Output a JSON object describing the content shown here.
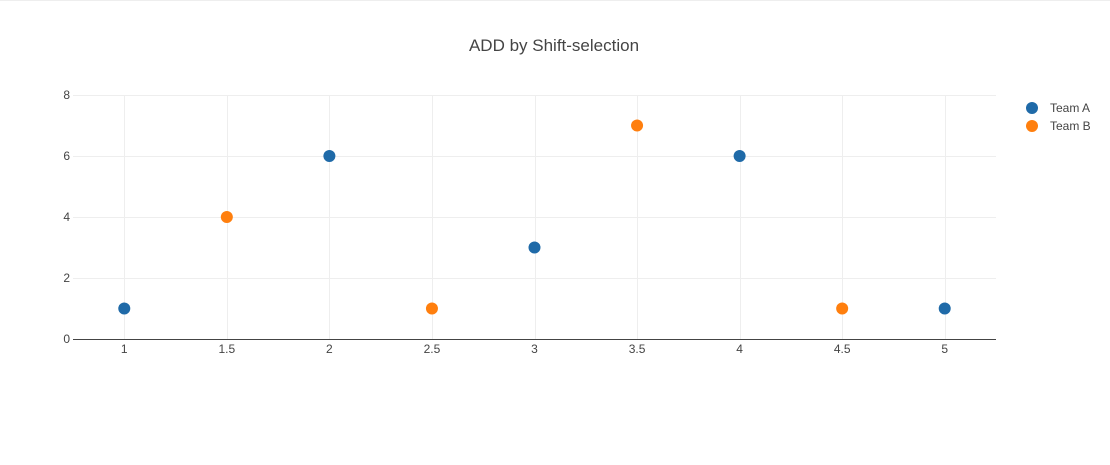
{
  "chart_data": {
    "type": "scatter",
    "title": "ADD by Shift-selection",
    "xlabel": "",
    "ylabel": "",
    "xlim": [
      0.75,
      5.25
    ],
    "ylim": [
      0,
      8
    ],
    "x_ticks": [
      "1",
      "1.5",
      "2",
      "2.5",
      "3",
      "3.5",
      "4",
      "4.5",
      "5"
    ],
    "x_tick_values": [
      1,
      1.5,
      2,
      2.5,
      3,
      3.5,
      4,
      4.5,
      5
    ],
    "y_ticks": [
      "0",
      "2",
      "4",
      "6",
      "8"
    ],
    "y_tick_values": [
      0,
      2,
      4,
      6,
      8
    ],
    "grid": true,
    "legend_position": "top-right",
    "series": [
      {
        "name": "Team A",
        "color": "#1f6aa8",
        "x": [
          1,
          2,
          3,
          4,
          5
        ],
        "y": [
          1,
          6,
          3,
          6,
          1
        ]
      },
      {
        "name": "Team B",
        "color": "#ff7f0e",
        "x": [
          1.5,
          2.5,
          3.5,
          4.5
        ],
        "y": [
          4,
          1,
          7,
          1
        ]
      }
    ]
  }
}
